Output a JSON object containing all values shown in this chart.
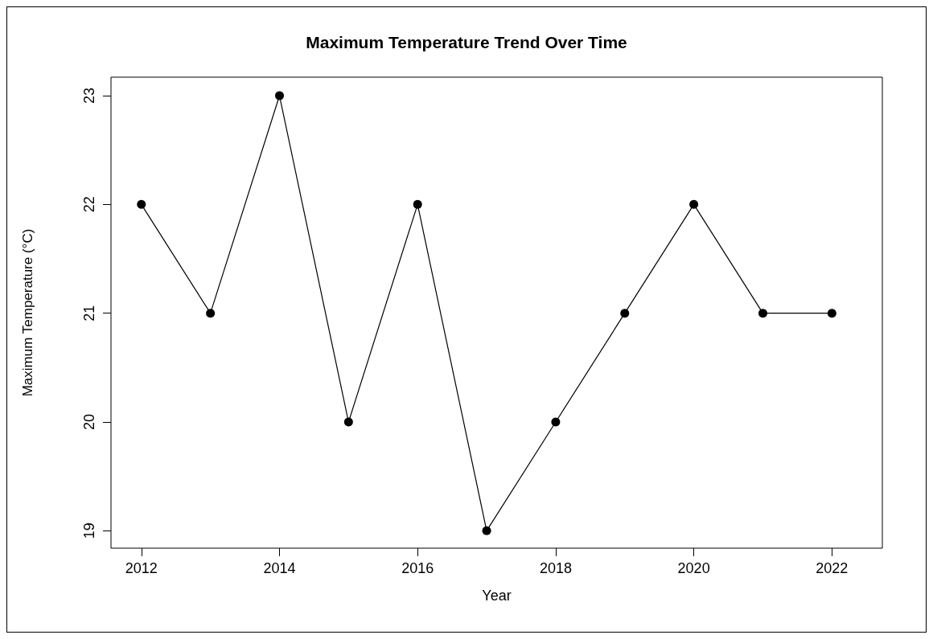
{
  "chart_data": {
    "type": "line",
    "title": "Maximum Temperature Trend Over Time",
    "xlabel": "Year",
    "ylabel": "Maximum Temperature (°C)",
    "x": [
      2012,
      2013,
      2014,
      2015,
      2016,
      2017,
      2018,
      2019,
      2020,
      2021,
      2022
    ],
    "series": [
      {
        "color": "#000000",
        "values": [
          22,
          21,
          23,
          20,
          22,
          19,
          20,
          21,
          22,
          21,
          21
        ]
      }
    ],
    "xlim": [
      2011.56,
      2022.73
    ],
    "xticks": [
      2012,
      2014,
      2016,
      2018,
      2020,
      2022
    ],
    "ylim": [
      18.84,
      23.17
    ],
    "yticks": [
      19,
      20,
      21,
      22,
      23
    ],
    "grid": false,
    "marker": "circle",
    "line_style": "solid"
  }
}
